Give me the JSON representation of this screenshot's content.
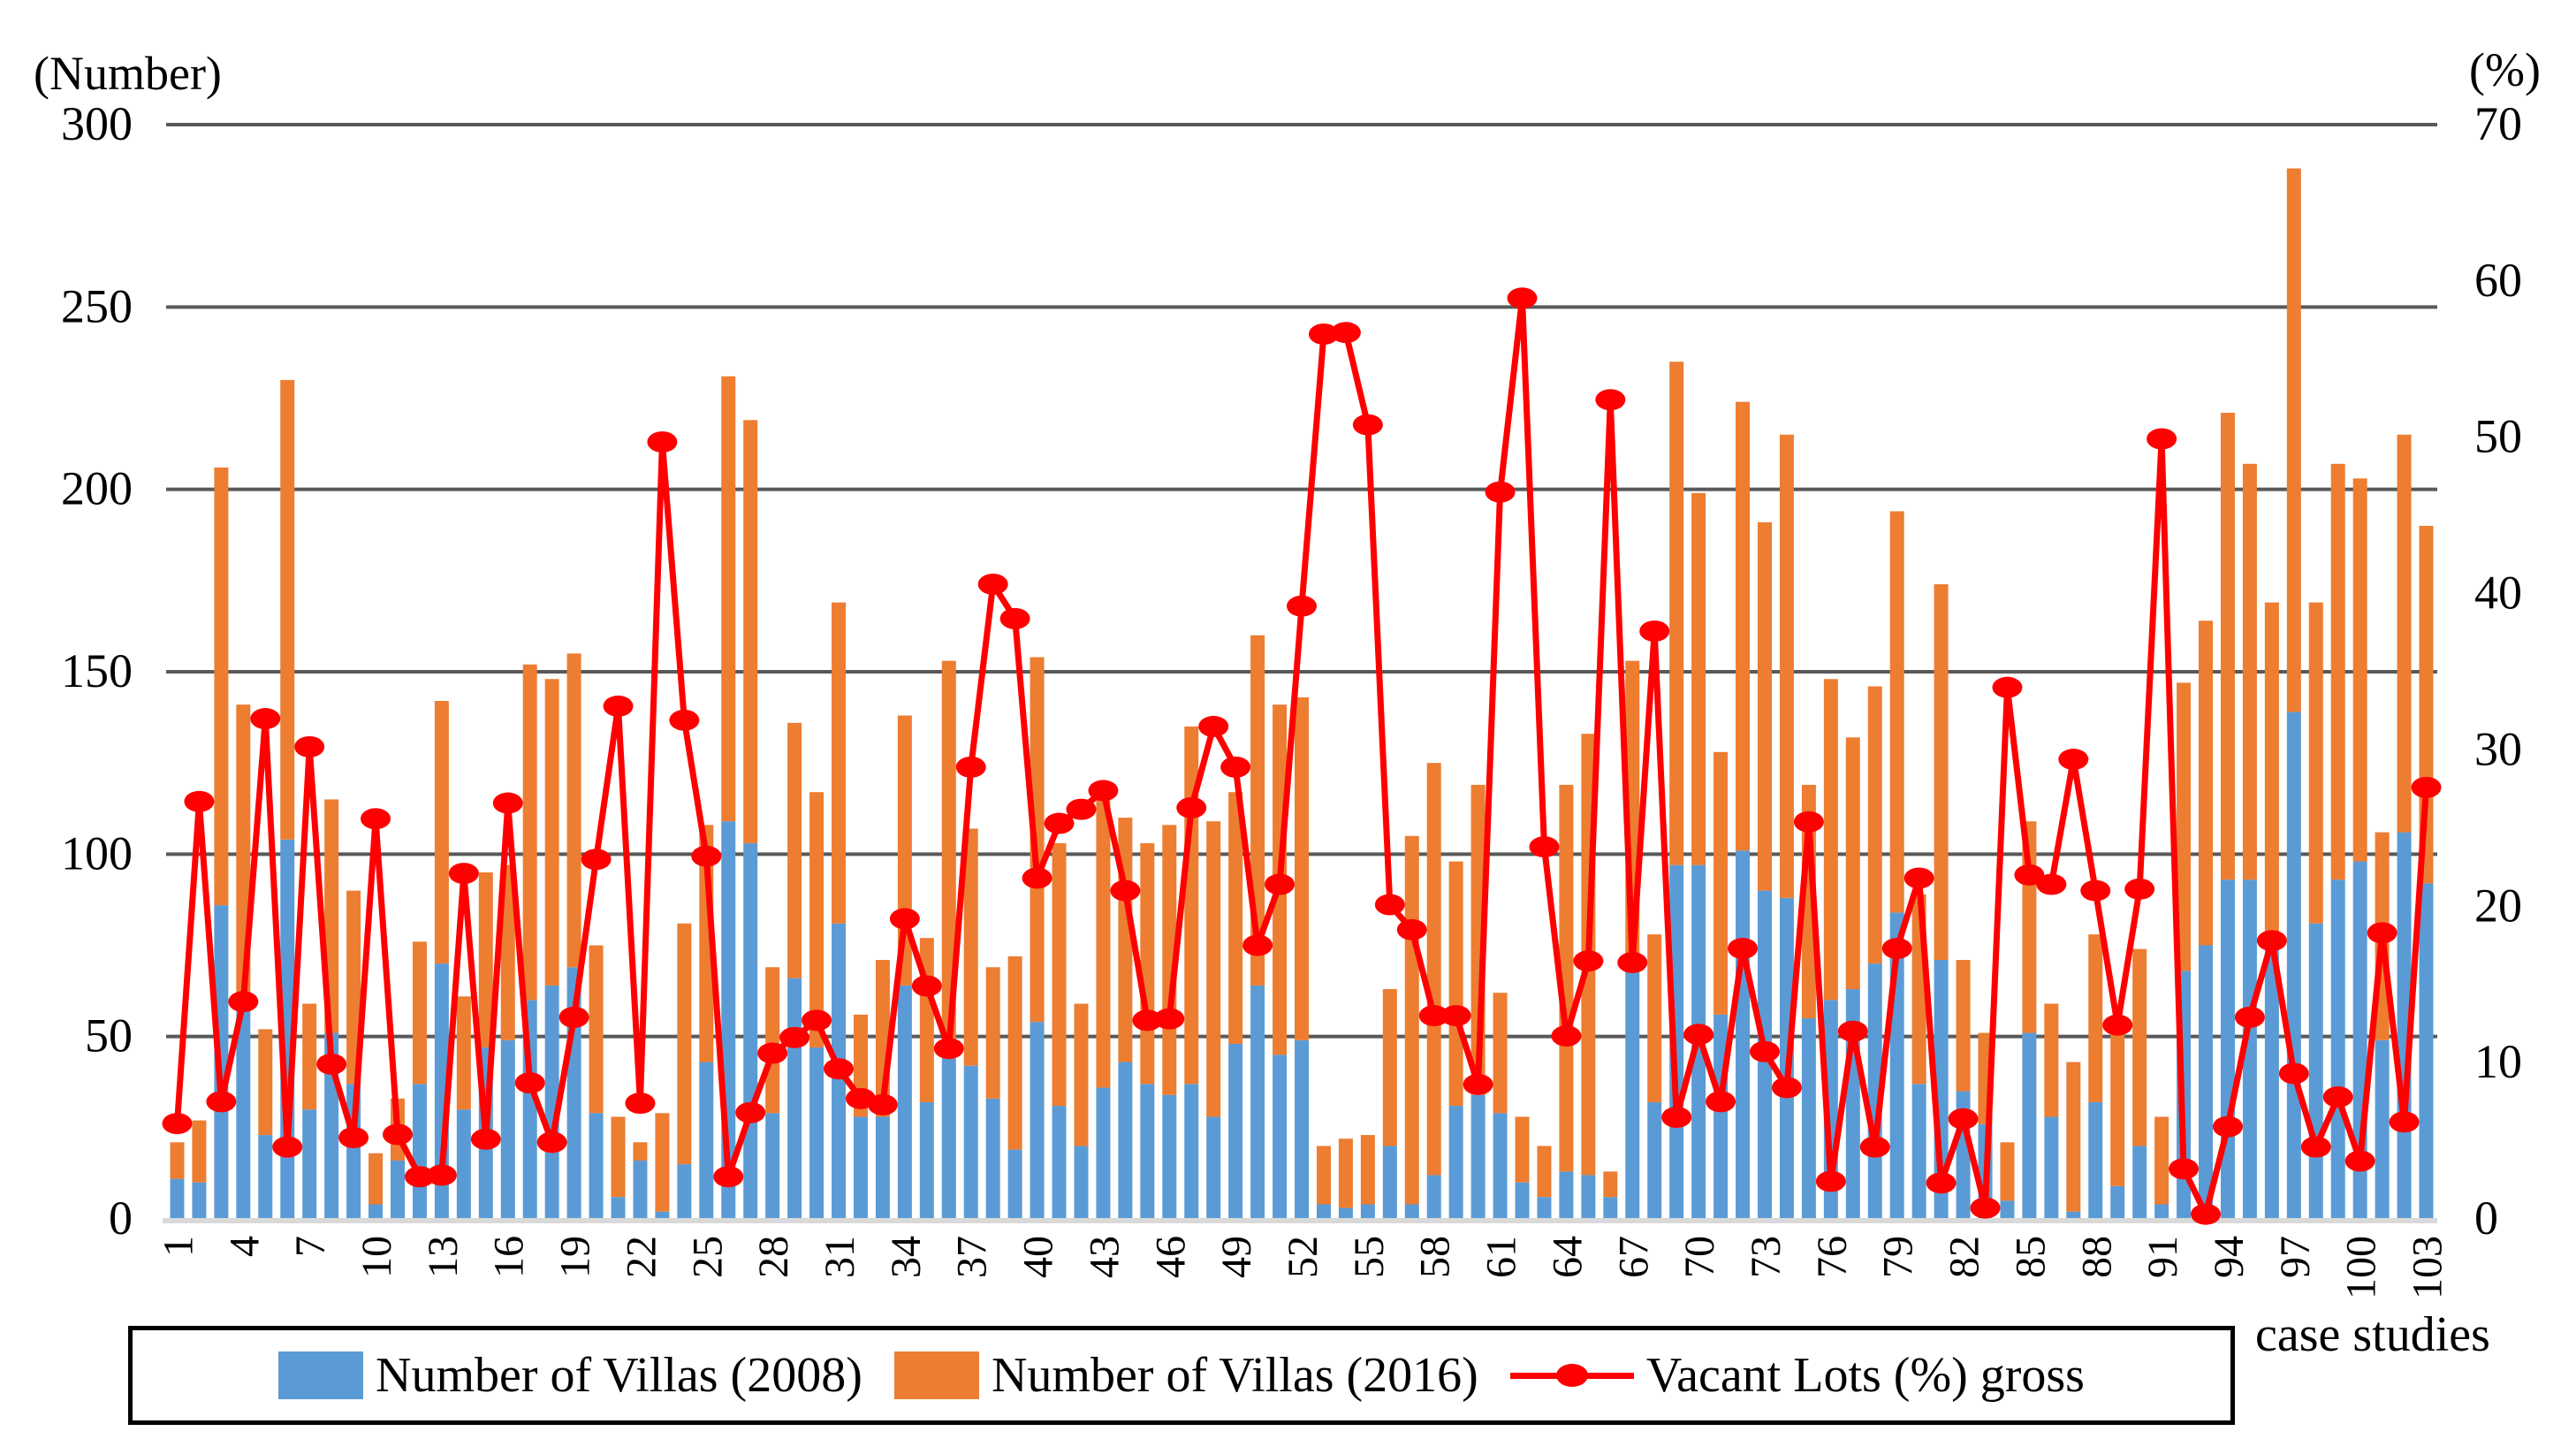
{
  "axes": {
    "left_title": "(Number)",
    "right_title": "(%)",
    "x_title": "case studies",
    "left_ticks": [
      0,
      50,
      100,
      150,
      200,
      250,
      300
    ],
    "right_ticks": [
      0,
      10,
      20,
      30,
      40,
      50,
      60,
      70
    ]
  },
  "legend": [
    {
      "label": "Number of Villas (2008)",
      "swatch": "blue-square"
    },
    {
      "label": "Number of Villas (2016)",
      "swatch": "orange-square"
    },
    {
      "label": "Vacant Lots (%) gross",
      "swatch": "red-line-marker"
    }
  ],
  "colors": {
    "villas_2008": "#5B9BD5",
    "villas_2016": "#ED7D31",
    "vacant_lots": "#FF0000",
    "gridline": "#595959",
    "baseline": "#D9D9D9"
  },
  "chart_data": {
    "type": "bar",
    "subtype": "stacked-bar-with-line-overlay",
    "x": [
      1,
      2,
      3,
      4,
      5,
      6,
      7,
      8,
      9,
      10,
      11,
      12,
      13,
      14,
      15,
      16,
      17,
      18,
      19,
      20,
      21,
      22,
      23,
      24,
      25,
      26,
      27,
      28,
      29,
      30,
      31,
      32,
      33,
      34,
      35,
      36,
      37,
      38,
      39,
      40,
      41,
      42,
      43,
      44,
      45,
      46,
      47,
      48,
      49,
      50,
      51,
      52,
      53,
      54,
      55,
      56,
      57,
      58,
      59,
      60,
      61,
      62,
      63,
      64,
      65,
      66,
      67,
      68,
      69,
      70,
      71,
      72,
      73,
      74,
      75,
      76,
      77,
      78,
      79,
      80,
      81,
      82,
      83,
      84,
      85,
      86,
      87,
      88,
      89,
      90,
      91,
      92,
      93,
      94,
      95,
      96,
      97,
      98,
      99,
      100,
      101,
      102,
      103
    ],
    "x_tick_labels": [
      1,
      4,
      7,
      10,
      13,
      16,
      19,
      22,
      25,
      28,
      31,
      34,
      37,
      40,
      43,
      46,
      49,
      52,
      55,
      58,
      61,
      64,
      67,
      70,
      73,
      76,
      79,
      82,
      85,
      88,
      91,
      94,
      97,
      100,
      103
    ],
    "xlabel": "case studies",
    "ylabel_left": "(Number)",
    "ylabel_right": "(%)",
    "ylim_left": [
      0,
      300
    ],
    "ylim_right": [
      0,
      70
    ],
    "grid": "horizontal",
    "legend_position": "bottom",
    "series": [
      {
        "name": "Number of Villas (2008)",
        "type": "bar",
        "stack": "total",
        "axis": "left",
        "color": "#5B9BD5",
        "values": [
          11,
          10,
          86,
          60,
          23,
          104,
          30,
          51,
          37,
          4,
          16,
          37,
          70,
          30,
          47,
          49,
          60,
          64,
          69,
          29,
          6,
          16,
          2,
          15,
          43,
          109,
          103,
          29,
          66,
          47,
          81,
          28,
          28,
          64,
          32,
          44,
          42,
          33,
          19,
          54,
          31,
          20,
          36,
          43,
          37,
          34,
          37,
          28,
          48,
          64,
          45,
          49,
          4,
          3,
          4,
          20,
          4,
          12,
          31,
          34,
          29,
          10,
          6,
          13,
          12,
          6,
          70,
          32,
          97,
          97,
          56,
          101,
          90,
          88,
          55,
          60,
          63,
          70,
          84,
          37,
          71,
          35,
          26,
          5,
          51,
          28,
          2,
          32,
          9,
          20,
          4,
          68,
          75,
          93,
          93,
          75,
          139,
          81,
          93,
          98,
          49,
          106,
          92
        ]
      },
      {
        "name": "Number of Villas (2016)",
        "type": "bar",
        "stack": "total",
        "axis": "left",
        "color": "#ED7D31",
        "values": [
          10,
          17,
          120,
          81,
          29,
          126,
          29,
          64,
          53,
          14,
          17,
          39,
          72,
          31,
          48,
          48,
          92,
          84,
          86,
          46,
          22,
          5,
          27,
          66,
          65,
          122,
          116,
          40,
          70,
          70,
          88,
          28,
          43,
          74,
          45,
          109,
          65,
          36,
          53,
          100,
          72,
          39,
          79,
          67,
          66,
          74,
          98,
          81,
          69,
          96,
          96,
          94,
          16,
          19,
          19,
          43,
          101,
          113,
          67,
          85,
          33,
          18,
          14,
          106,
          121,
          7,
          83,
          46,
          138,
          102,
          72,
          123,
          101,
          127,
          64,
          88,
          69,
          76,
          110,
          52,
          103,
          36,
          25,
          16,
          58,
          31,
          41,
          46,
          42,
          54,
          24,
          79,
          89,
          128,
          114,
          94,
          149,
          88,
          114,
          105,
          57,
          109,
          98
        ]
      },
      {
        "name": "Vacant Lots (%) gross",
        "type": "line",
        "axis": "right",
        "color": "#FF0000",
        "marker": "ellipse",
        "values": [
          6.1,
          26.7,
          7.5,
          13.9,
          32.0,
          4.6,
          30.2,
          9.9,
          5.2,
          25.6,
          5.4,
          2.7,
          2.8,
          22.1,
          5.1,
          26.6,
          8.7,
          4.9,
          12.9,
          23.0,
          32.8,
          7.4,
          49.7,
          31.9,
          23.2,
          2.7,
          6.8,
          10.6,
          11.6,
          12.7,
          9.6,
          7.7,
          7.3,
          19.2,
          14.9,
          10.9,
          28.9,
          40.6,
          38.4,
          21.8,
          25.3,
          26.2,
          27.4,
          21.0,
          12.7,
          12.8,
          26.3,
          31.5,
          28.9,
          17.5,
          21.4,
          39.2,
          56.6,
          56.7,
          50.8,
          20.1,
          18.5,
          13.0,
          13.0,
          8.6,
          46.5,
          58.9,
          23.8,
          11.7,
          16.5,
          52.4,
          16.4,
          37.6,
          6.5,
          11.8,
          7.5,
          17.3,
          10.7,
          8.4,
          25.4,
          2.4,
          12.0,
          4.6,
          17.3,
          21.8,
          2.3,
          6.4,
          0.7,
          34.0,
          22.0,
          21.4,
          29.4,
          21.0,
          12.4,
          21.1,
          49.9,
          3.2,
          0.3,
          5.9,
          12.9,
          17.8,
          9.3,
          4.6,
          7.8,
          3.7,
          18.3,
          6.2,
          27.6
        ]
      }
    ]
  }
}
